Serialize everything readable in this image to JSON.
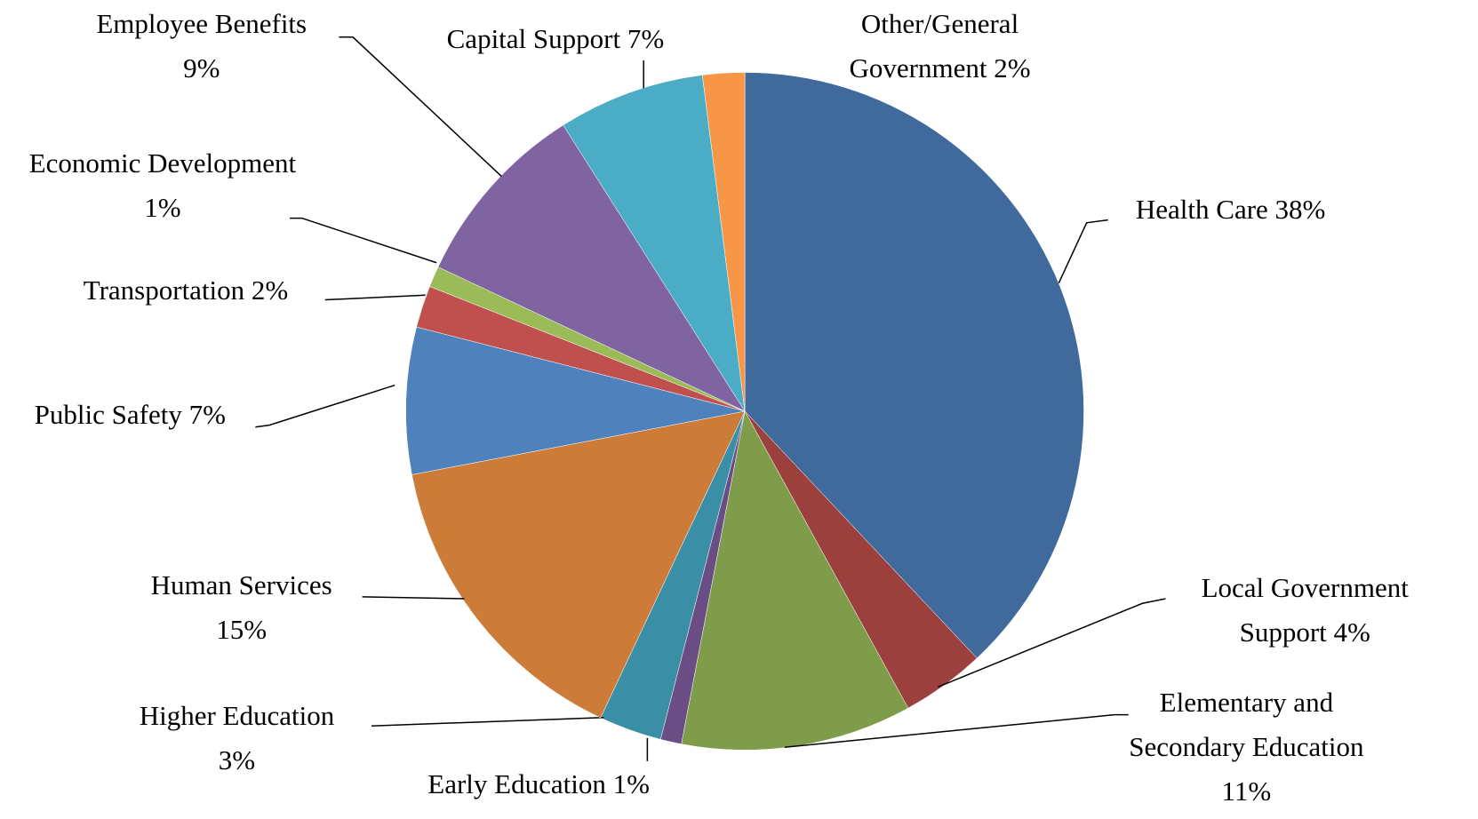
{
  "chart_data": {
    "type": "pie",
    "categories": [
      "Health Care",
      "Local Government Support",
      "Elementary and Secondary Education",
      "Early Education",
      "Higher Education",
      "Human Services",
      "Public Safety",
      "Transportation",
      "Economic Development",
      "Employee Benefits",
      "Capital Support",
      "Other/General Government"
    ],
    "values": [
      38,
      4,
      11,
      1,
      3,
      15,
      7,
      2,
      1,
      9,
      7,
      2
    ],
    "value_labels": [
      "38%",
      "4%",
      "11%",
      "1%",
      "3%",
      "15%",
      "7%",
      "2%",
      "1%",
      "9%",
      "7%",
      "2%"
    ],
    "colors": [
      "#416a9c",
      "#9c403e",
      "#7f9c4a",
      "#694d84",
      "#3a8ea5",
      "#cc7b39",
      "#4f81bd",
      "#c0504d",
      "#9bbb59",
      "#8064a2",
      "#4bacc6",
      "#f79646"
    ]
  }
}
